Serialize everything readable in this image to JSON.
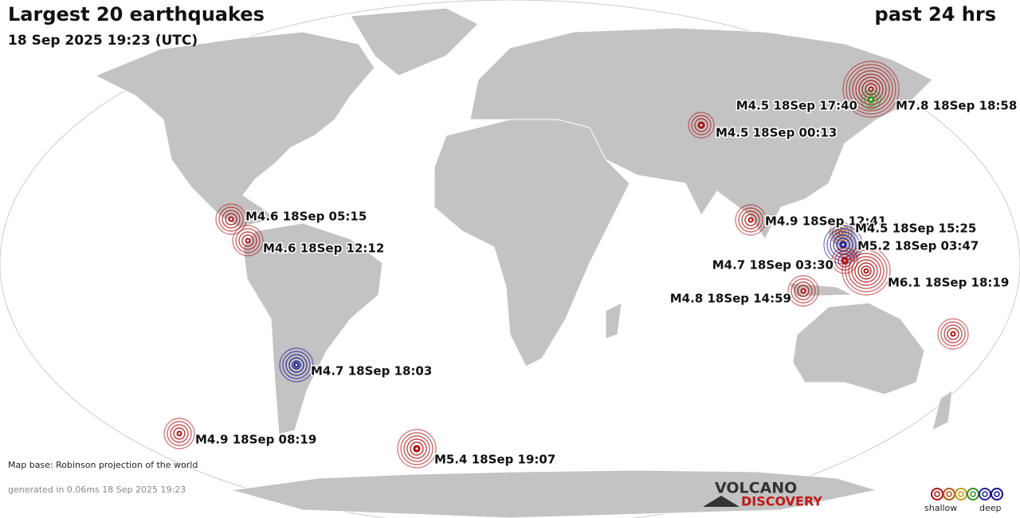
{
  "header": {
    "title": "Largest 20 earthquakes",
    "subtitle": "18 Sep 2025 19:23 (UTC)",
    "period": "past 24 hrs"
  },
  "quakes": [
    {
      "label": "M7.8 18Sep 18:58",
      "color": "#b01010"
    },
    {
      "label": "M4.5 18Sep 17:40",
      "color": "#2f8f1f"
    },
    {
      "label": "M4.5 18Sep 00:13",
      "color": "#b01010"
    },
    {
      "label": "M4.6 18Sep 05:15",
      "color": "#b01010"
    },
    {
      "label": "M4.6 18Sep 12:12",
      "color": "#b01010"
    },
    {
      "label": "M4.9 18Sep 12:41",
      "color": "#b01010"
    },
    {
      "label": "M4.5 18Sep 15:25",
      "color": "#c05010"
    },
    {
      "label": "M5.2 18Sep 03:47",
      "color": "#2020a0"
    },
    {
      "label": "M4.7 18Sep 03:30",
      "color": "#b01010"
    },
    {
      "label": "M6.1 18Sep 18:19",
      "color": "#b01010"
    },
    {
      "label": "M4.8 18Sep 14:59",
      "color": "#b01010"
    },
    {
      "label": "M4.7 18Sep 18:03",
      "color": "#10108f"
    },
    {
      "label": "M4.9 18Sep 08:19",
      "color": "#b01010"
    },
    {
      "label": "M5.4 18Sep 19:07",
      "color": "#b01010"
    }
  ],
  "footer": {
    "map_base": "Map base: Robinson projection of the world",
    "generated": "generated in 0.06ms 18 Sep 2025 19:23",
    "logo_top": "VOLCANO",
    "logo_bottom": "DISCOVERY",
    "legend_shallow": "shallow",
    "legend_deep": "deep"
  }
}
